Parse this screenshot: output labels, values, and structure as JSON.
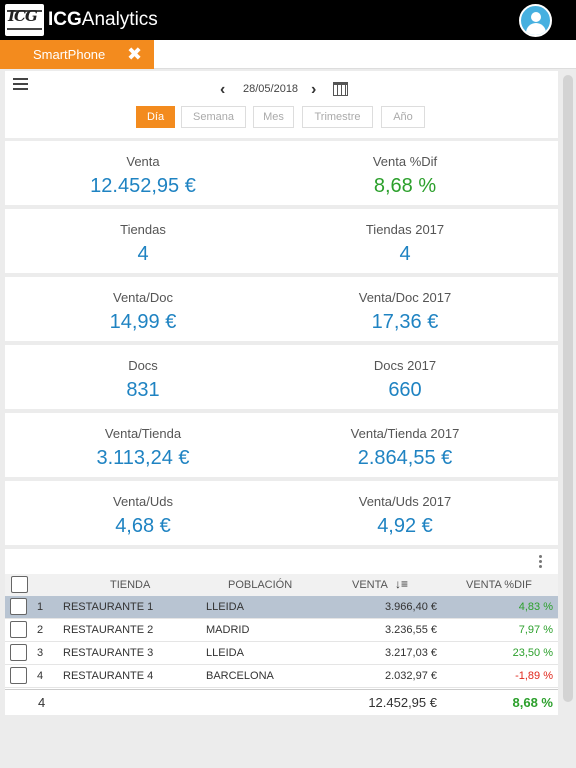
{
  "app": {
    "logo_text": "ICG",
    "title_bold": "ICG",
    "title_rest": "Analytics"
  },
  "tabs": [
    {
      "label": "SmartPhone",
      "close_icon": "close-icon"
    }
  ],
  "toolbar": {
    "date": "28/05/2018",
    "periods": [
      "Día",
      "Semana",
      "Mes",
      "Trimestre",
      "Año"
    ],
    "active_period": "Día"
  },
  "kpis": [
    {
      "label": "Venta",
      "value": "12.452,95 €"
    },
    {
      "label": "Venta %Dif",
      "value": "8,68 %"
    },
    {
      "label": "Tiendas",
      "value": "4"
    },
    {
      "label": "Tiendas 2017",
      "value": "4"
    },
    {
      "label": "Venta/Doc",
      "value": "14,99 €"
    },
    {
      "label": "Venta/Doc 2017",
      "value": "17,36 €"
    },
    {
      "label": "Docs",
      "value": "831"
    },
    {
      "label": "Docs 2017",
      "value": "660"
    },
    {
      "label": "Venta/Tienda",
      "value": "3.113,24 €"
    },
    {
      "label": "Venta/Tienda 2017",
      "value": "2.864,55 €"
    },
    {
      "label": "Venta/Uds",
      "value": "4,68 €"
    },
    {
      "label": "Venta/Uds 2017",
      "value": "4,92 €"
    }
  ],
  "table": {
    "headers": {
      "tienda": "TIENDA",
      "poblacion": "POBLACIÓN",
      "venta": "VENTA",
      "venta_dif": "VENTA %DIF"
    },
    "rows": [
      {
        "n": "1",
        "tienda": "RESTAURANTE 1",
        "poblacion": "LLEIDA",
        "venta": "3.966,40 €",
        "dif": "4,83 %"
      },
      {
        "n": "2",
        "tienda": "RESTAURANTE 2",
        "poblacion": "MADRID",
        "venta": "3.236,55 €",
        "dif": "7,97 %"
      },
      {
        "n": "3",
        "tienda": "RESTAURANTE 3",
        "poblacion": "LLEIDA",
        "venta": "3.217,03 €",
        "dif": "23,50 %"
      },
      {
        "n": "4",
        "tienda": "RESTAURANTE 4",
        "poblacion": "BARCELONA",
        "venta": "2.032,97 €",
        "dif": "-1,89 %"
      }
    ],
    "footer": {
      "count": "4",
      "venta": "12.452,95 €",
      "dif": "8,68 %"
    }
  },
  "colors": {
    "accent": "#f38b1e",
    "value_blue": "#1f83c2",
    "positive": "#2ca02c",
    "negative": "#e0281c",
    "selected_row": "#b8c4d2"
  }
}
